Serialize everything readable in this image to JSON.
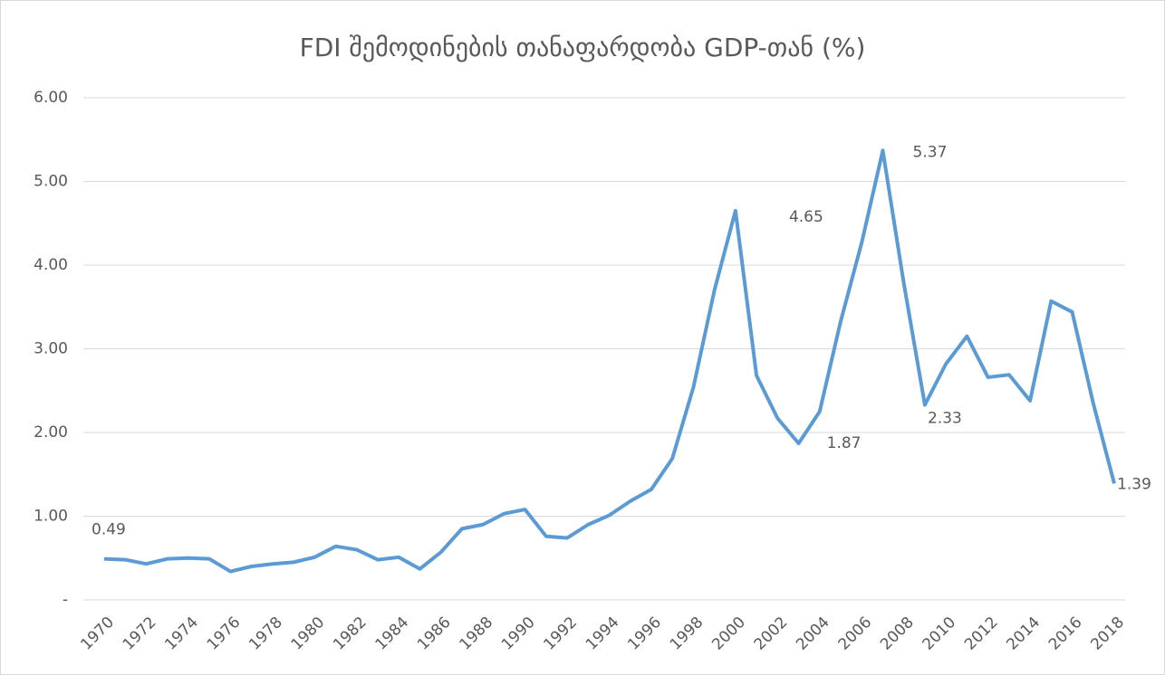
{
  "chart_data": {
    "type": "line",
    "title": "FDI შემოდინების თანაფარდობა GDP-თან (%)",
    "categories": [
      "1970",
      null,
      "1972",
      null,
      "1974",
      null,
      "1976",
      null,
      "1978",
      null,
      "1980",
      null,
      "1982",
      null,
      "1984",
      null,
      "1986",
      null,
      "1988",
      null,
      "1990",
      null,
      "1992",
      null,
      "1994",
      null,
      "1996",
      null,
      "1998",
      null,
      "2000",
      null,
      "2002",
      null,
      "2004",
      null,
      "2006",
      null,
      "2008",
      null,
      "2010",
      null,
      "2012",
      null,
      "2014",
      null,
      "2016",
      null,
      "2018"
    ],
    "series": [
      {
        "name": "FDI",
        "color": "#5b9bd5",
        "values": [
          0.49,
          0.48,
          0.43,
          0.49,
          0.5,
          0.49,
          0.34,
          0.4,
          0.43,
          0.45,
          0.51,
          0.64,
          0.6,
          0.48,
          0.51,
          0.37,
          0.57,
          0.85,
          0.9,
          1.03,
          1.08,
          0.76,
          0.74,
          0.9,
          1.01,
          1.18,
          1.32,
          1.69,
          2.54,
          3.7,
          4.65,
          2.68,
          2.17,
          1.87,
          2.25,
          3.33,
          4.27,
          5.37,
          3.78,
          2.33,
          2.82,
          3.15,
          2.66,
          2.69,
          2.38,
          3.57,
          3.44,
          2.35,
          1.39
        ],
        "value_labels": [
          "0.49",
          null,
          null,
          null,
          null,
          null,
          null,
          null,
          null,
          null,
          null,
          null,
          null,
          null,
          null,
          null,
          null,
          null,
          null,
          null,
          null,
          null,
          null,
          null,
          null,
          null,
          null,
          null,
          null,
          null,
          "4.65",
          null,
          null,
          "1.87",
          null,
          null,
          null,
          "5.37",
          null,
          "2.33",
          null,
          null,
          null,
          null,
          null,
          null,
          null,
          null,
          "1.39"
        ]
      }
    ],
    "ylim": [
      0,
      6
    ],
    "yticks": [
      {
        "value": 0,
        "label": "-"
      },
      {
        "value": 1,
        "label": "1.00"
      },
      {
        "value": 2,
        "label": "2.00"
      },
      {
        "value": 3,
        "label": "3.00"
      },
      {
        "value": 4,
        "label": "4.00"
      },
      {
        "value": 5,
        "label": "5.00"
      },
      {
        "value": 6,
        "label": "6.00"
      }
    ],
    "grid": true
  }
}
